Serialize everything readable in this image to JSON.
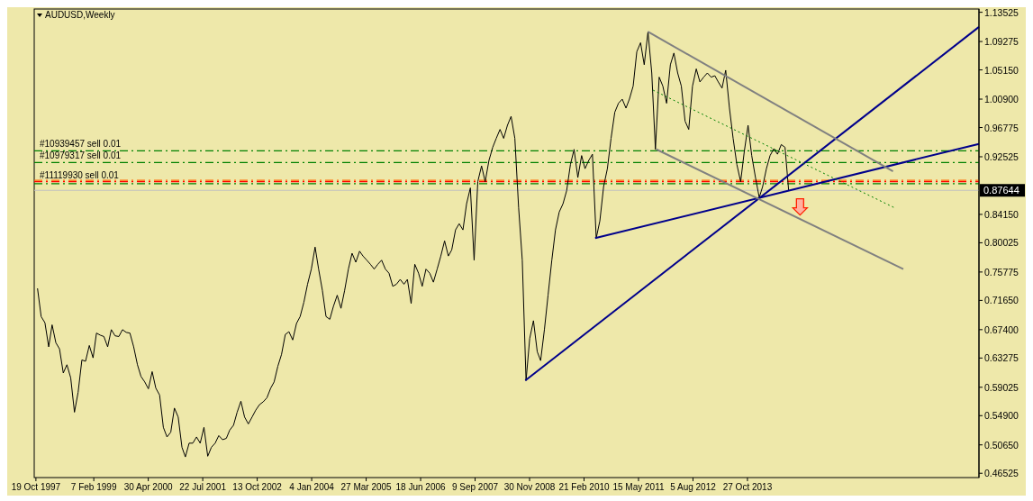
{
  "chart_data": {
    "type": "line",
    "title": "AUDUSD,Weekly",
    "xlim": [
      "1997-10-05",
      "2019-01-13"
    ],
    "xticks": [
      {
        "value": "1997-10-19",
        "label": "19 Oct 1997"
      },
      {
        "value": "1999-02-07",
        "label": "7 Feb 1999"
      },
      {
        "value": "2000-04-30",
        "label": "30 Apr 2000"
      },
      {
        "value": "2001-07-22",
        "label": "22 Jul 2001"
      },
      {
        "value": "2002-10-13",
        "label": "13 Oct 2002"
      },
      {
        "value": "2004-01-04",
        "label": "4 Jan 2004"
      },
      {
        "value": "2005-03-27",
        "label": "27 Mar 2005"
      },
      {
        "value": "2006-06-18",
        "label": "18 Jun 2006"
      },
      {
        "value": "2007-09-09",
        "label": "9 Sep 2007"
      },
      {
        "value": "2008-11-30",
        "label": "30 Nov 2008"
      },
      {
        "value": "2010-02-21",
        "label": "21 Feb 2010"
      },
      {
        "value": "2011-05-15",
        "label": "15 May 2011"
      },
      {
        "value": "2012-08-05",
        "label": "5 Aug 2012"
      },
      {
        "value": "2013-10-27",
        "label": "27 Oct 2013"
      }
    ],
    "ylim": [
      0.459,
      1.14
    ],
    "yticks": [
      {
        "value": 1.13525,
        "label": "1.13525"
      },
      {
        "value": 1.09275,
        "label": "1.09275"
      },
      {
        "value": 1.0515,
        "label": "1.05150"
      },
      {
        "value": 1.009,
        "label": "1.00900"
      },
      {
        "value": 0.96775,
        "label": "0.96775"
      },
      {
        "value": 0.92525,
        "label": "0.92525"
      },
      {
        "value": 0.8415,
        "label": "0.84150"
      },
      {
        "value": 0.80025,
        "label": "0.80025"
      },
      {
        "value": 0.75775,
        "label": "0.75775"
      },
      {
        "value": 0.7165,
        "label": "0.71650"
      },
      {
        "value": 0.674,
        "label": "0.67400"
      },
      {
        "value": 0.63275,
        "label": "0.63275"
      },
      {
        "value": 0.59025,
        "label": "0.59025"
      },
      {
        "value": 0.549,
        "label": "0.54900"
      },
      {
        "value": 0.5065,
        "label": "0.50650"
      },
      {
        "value": 0.46525,
        "label": "0.46525"
      }
    ],
    "series": [
      {
        "color": "#000000",
        "x": [
          "1997-11",
          "1997-12",
          "1998-01",
          "1998-02",
          "1998-03",
          "1998-04",
          "1998-05",
          "1998-06",
          "1998-07",
          "1998-08",
          "1998-09",
          "1998-10",
          "1998-11",
          "1998-12",
          "1999-01",
          "1999-02",
          "1999-03",
          "1999-04",
          "1999-05",
          "1999-06",
          "1999-07",
          "1999-08",
          "1999-09",
          "1999-10",
          "1999-11",
          "1999-12",
          "2000-01",
          "2000-02",
          "2000-03",
          "2000-04",
          "2000-05",
          "2000-06",
          "2000-07",
          "2000-08",
          "2000-09",
          "2000-10",
          "2000-11",
          "2000-12",
          "2001-01",
          "2001-02",
          "2001-03",
          "2001-04",
          "2001-05",
          "2001-06",
          "2001-07",
          "2001-08",
          "2001-09",
          "2001-10",
          "2001-11",
          "2001-12",
          "2002-01",
          "2002-02",
          "2002-03",
          "2002-04",
          "2002-05",
          "2002-06",
          "2002-07",
          "2002-08",
          "2002-09",
          "2002-10",
          "2002-11",
          "2002-12",
          "2003-01",
          "2003-02",
          "2003-03",
          "2003-04",
          "2003-05",
          "2003-06",
          "2003-07",
          "2003-08",
          "2003-09",
          "2003-10",
          "2003-11",
          "2003-12",
          "2004-01",
          "2004-02",
          "2004-03",
          "2004-04",
          "2004-05",
          "2004-06",
          "2004-07",
          "2004-08",
          "2004-09",
          "2004-10",
          "2004-11",
          "2004-12",
          "2005-01",
          "2005-02",
          "2005-03",
          "2005-04",
          "2005-05",
          "2005-06",
          "2005-07",
          "2005-08",
          "2005-09",
          "2005-10",
          "2005-11",
          "2005-12",
          "2006-01",
          "2006-02",
          "2006-03",
          "2006-04",
          "2006-05",
          "2006-06",
          "2006-07",
          "2006-08",
          "2006-09",
          "2006-10",
          "2006-11",
          "2006-12",
          "2007-01",
          "2007-02",
          "2007-03",
          "2007-04",
          "2007-05",
          "2007-06",
          "2007-07",
          "2007-08",
          "2007-09",
          "2007-10",
          "2007-11",
          "2007-12",
          "2008-01",
          "2008-02",
          "2008-03",
          "2008-04",
          "2008-05",
          "2008-06",
          "2008-07",
          "2008-08",
          "2008-09",
          "2008-10",
          "2008-11",
          "2008-12",
          "2009-01",
          "2009-02",
          "2009-03",
          "2009-04",
          "2009-05",
          "2009-06",
          "2009-07",
          "2009-08",
          "2009-09",
          "2009-10",
          "2009-11",
          "2009-12",
          "2010-01",
          "2010-02",
          "2010-03",
          "2010-04",
          "2010-05",
          "2010-06",
          "2010-07",
          "2010-08",
          "2010-09",
          "2010-10",
          "2010-11",
          "2010-12",
          "2011-01",
          "2011-02",
          "2011-03",
          "2011-04",
          "2011-05",
          "2011-06",
          "2011-07",
          "2011-08",
          "2011-09",
          "2011-10",
          "2011-11",
          "2011-12",
          "2012-01",
          "2012-02",
          "2012-03",
          "2012-04",
          "2012-05",
          "2012-06",
          "2012-07",
          "2012-08",
          "2012-09",
          "2012-10",
          "2012-11",
          "2012-12",
          "2013-01",
          "2013-02",
          "2013-03",
          "2013-04",
          "2013-05",
          "2013-06",
          "2013-07",
          "2013-08",
          "2013-09",
          "2013-10",
          "2013-11",
          "2013-12",
          "2014-01",
          "2014-02",
          "2014-03",
          "2014-04",
          "2014-05",
          "2014-06",
          "2014-07",
          "2014-08",
          "2014-09",
          "2014-10"
        ],
        "values": [
          0.734,
          0.693,
          0.684,
          0.649,
          0.681,
          0.655,
          0.646,
          0.611,
          0.623,
          0.604,
          0.554,
          0.583,
          0.63,
          0.628,
          0.651,
          0.633,
          0.669,
          0.666,
          0.664,
          0.649,
          0.674,
          0.665,
          0.664,
          0.674,
          0.67,
          0.669,
          0.649,
          0.623,
          0.606,
          0.598,
          0.588,
          0.613,
          0.589,
          0.579,
          0.532,
          0.518,
          0.525,
          0.56,
          0.547,
          0.503,
          0.489,
          0.509,
          0.509,
          0.518,
          0.509,
          0.532,
          0.49,
          0.503,
          0.509,
          0.52,
          0.514,
          0.516,
          0.528,
          0.535,
          0.554,
          0.57,
          0.547,
          0.537,
          0.547,
          0.557,
          0.565,
          0.569,
          0.575,
          0.589,
          0.598,
          0.621,
          0.638,
          0.667,
          0.671,
          0.659,
          0.683,
          0.693,
          0.714,
          0.74,
          0.762,
          0.794,
          0.762,
          0.731,
          0.693,
          0.689,
          0.708,
          0.724,
          0.705,
          0.731,
          0.762,
          0.785,
          0.772,
          0.788,
          0.781,
          0.775,
          0.769,
          0.762,
          0.769,
          0.775,
          0.762,
          0.756,
          0.737,
          0.74,
          0.747,
          0.74,
          0.747,
          0.712,
          0.769,
          0.756,
          0.737,
          0.762,
          0.756,
          0.743,
          0.762,
          0.781,
          0.803,
          0.781,
          0.79,
          0.819,
          0.828,
          0.819,
          0.857,
          0.88,
          0.775,
          0.889,
          0.912,
          0.889,
          0.92,
          0.939,
          0.952,
          0.965,
          0.952,
          0.971,
          0.984,
          0.952,
          0.851,
          0.775,
          0.6,
          0.661,
          0.687,
          0.642,
          0.629,
          0.674,
          0.724,
          0.775,
          0.819,
          0.845,
          0.857,
          0.876,
          0.914,
          0.936,
          0.895,
          0.927,
          0.908,
          0.92,
          0.929,
          0.807,
          0.832,
          0.882,
          0.908,
          0.952,
          0.99,
          1.003,
          1.009,
          0.996,
          1.009,
          1.028,
          1.078,
          1.091,
          1.059,
          1.107,
          1.047,
          0.936,
          1.041,
          1.028,
          1.003,
          1.059,
          1.076,
          1.047,
          1.028,
          0.977,
          0.965,
          1.028,
          1.053,
          1.034,
          1.041,
          1.047,
          1.041,
          1.043,
          1.034,
          1.025,
          1.051,
          0.996,
          0.952,
          0.914,
          0.889,
          0.933,
          0.971,
          0.927,
          0.895,
          0.866,
          0.882,
          0.908,
          0.927,
          0.937,
          0.929,
          0.943,
          0.939,
          0.876
        ]
      },
      {
        "color": "#00008b",
        "x": [
          "2008-10-26",
          "2019-01-13"
        ],
        "values": [
          0.6,
          1.114
        ]
      },
      {
        "color": "#00008b",
        "x": [
          "2010-05-23",
          "2019-01-13"
        ],
        "values": [
          0.807,
          0.944
        ]
      },
      {
        "color": "#808080",
        "x": [
          "2011-07-31",
          "2017-02-05"
        ],
        "values": [
          1.107,
          0.904
        ]
      },
      {
        "color": "#808080",
        "x": [
          "2011-10-09",
          "2017-05-01"
        ],
        "values": [
          0.936,
          0.762
        ]
      },
      {
        "color": "#008000",
        "line_style": "dotted",
        "x": [
          "2011-09-12",
          "2017-02-19"
        ],
        "values": [
          1.022,
          0.851
        ]
      }
    ],
    "ref_lines": [
      {
        "axis": "y",
        "value": 0.934,
        "label": "#10939457 sell 0.01",
        "color": "#008000",
        "line_style": "dashed"
      },
      {
        "axis": "y",
        "value": 0.917,
        "label": "#10979317 sell 0.01",
        "color": "#008000",
        "line_style": "dashed"
      },
      {
        "axis": "y",
        "value": 0.891,
        "color": "#ff6600",
        "line_style": "dashed"
      },
      {
        "axis": "y",
        "value": 0.889,
        "label": "#11119930 sell 0.01",
        "color": "#ff0000",
        "line_style": "dashed"
      },
      {
        "axis": "y",
        "value": 0.886,
        "color": "#008000",
        "line_style": "dashed"
      },
      {
        "axis": "y",
        "value": 0.87644,
        "label": "0.87644",
        "color": "#c0c0c0",
        "line_style": "solid"
      }
    ]
  }
}
